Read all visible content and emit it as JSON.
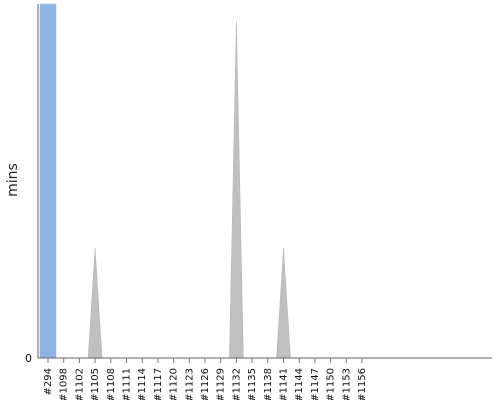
{
  "chart_data": {
    "type": "area",
    "title": "",
    "xlabel": "",
    "ylabel": "mins",
    "categories": [
      "#294",
      "#1098",
      "#1102",
      "#1105",
      "#1108",
      "#1111",
      "#1114",
      "#1117",
      "#1120",
      "#1123",
      "#1126",
      "#1129",
      "#1132",
      "#1135",
      "#1138",
      "#1141",
      "#1144",
      "#1147",
      "#1150",
      "#1153",
      "#1156"
    ],
    "values": [
      1.0,
      0,
      0,
      0.31,
      0,
      0,
      0,
      0,
      0,
      0,
      0,
      0,
      0.95,
      0,
      0,
      0.31,
      0,
      0,
      0,
      0,
      0
    ],
    "yticks": [
      "0"
    ],
    "ylim": [
      0,
      1.0
    ],
    "highlight": {
      "category": "#294",
      "value": 1.0,
      "color": "#8eb4e3"
    },
    "colors": {
      "fill": "#c0c0c0",
      "highlight": "#8eb4e3",
      "axis": "#666666"
    },
    "grid": false,
    "legend": "none"
  }
}
